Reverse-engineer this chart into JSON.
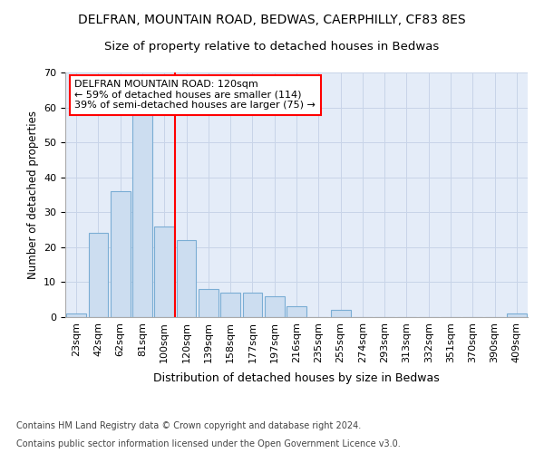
{
  "title1": "DELFRAN, MOUNTAIN ROAD, BEDWAS, CAERPHILLY, CF83 8ES",
  "title2": "Size of property relative to detached houses in Bedwas",
  "xlabel": "Distribution of detached houses by size in Bedwas",
  "ylabel": "Number of detached properties",
  "categories": [
    "23sqm",
    "42sqm",
    "62sqm",
    "81sqm",
    "100sqm",
    "120sqm",
    "139sqm",
    "158sqm",
    "177sqm",
    "197sqm",
    "216sqm",
    "235sqm",
    "255sqm",
    "274sqm",
    "293sqm",
    "313sqm",
    "332sqm",
    "351sqm",
    "370sqm",
    "390sqm",
    "409sqm"
  ],
  "values": [
    1,
    24,
    36,
    58,
    26,
    22,
    8,
    7,
    7,
    6,
    3,
    0,
    2,
    0,
    0,
    0,
    0,
    0,
    0,
    0,
    1
  ],
  "bar_color": "#ccddf0",
  "bar_edge_color": "#7aadd4",
  "vline_color": "red",
  "vline_x": 4.5,
  "annotation_line1": "DELFRAN MOUNTAIN ROAD: 120sqm",
  "annotation_line2": "← 59% of detached houses are smaller (114)",
  "annotation_line3": "39% of semi-detached houses are larger (75) →",
  "annotation_box_color": "white",
  "annotation_box_edge_color": "red",
  "ylim": [
    0,
    70
  ],
  "yticks": [
    0,
    10,
    20,
    30,
    40,
    50,
    60,
    70
  ],
  "grid_color": "#c8d4e8",
  "background_color": "#e4ecf8",
  "footer_line1": "Contains HM Land Registry data © Crown copyright and database right 2024.",
  "footer_line2": "Contains public sector information licensed under the Open Government Licence v3.0.",
  "title1_fontsize": 10,
  "title2_fontsize": 9.5,
  "xlabel_fontsize": 9,
  "ylabel_fontsize": 8.5,
  "tick_fontsize": 8,
  "annotation_fontsize": 8,
  "footer_fontsize": 7
}
